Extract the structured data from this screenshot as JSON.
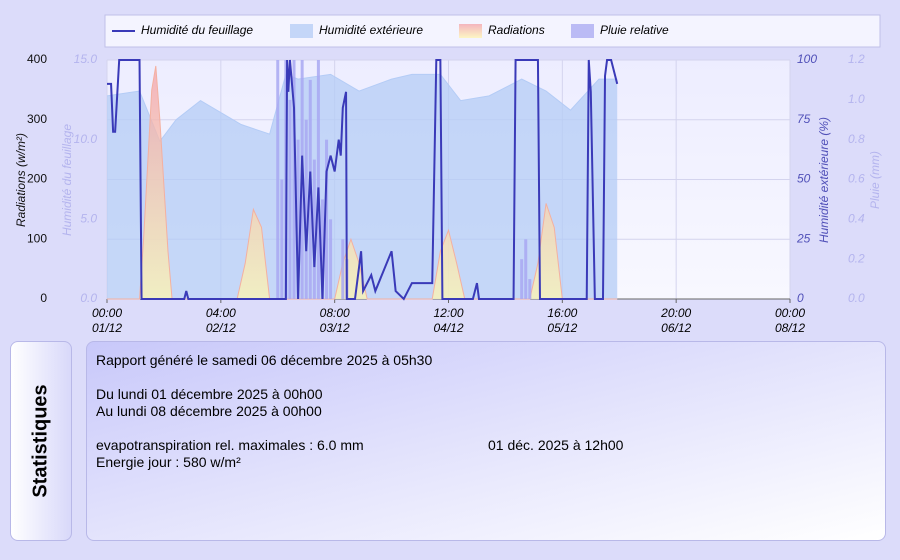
{
  "chart_data": {
    "type": "combo",
    "xlim": [
      0,
      168
    ],
    "xticks": [
      {
        "value": 0,
        "label": "00:00"
      },
      {
        "value": 28,
        "label": "04:00"
      },
      {
        "value": 56,
        "label": "08:00"
      },
      {
        "value": 84,
        "label": "12:00"
      },
      {
        "value": 112,
        "label": "16:00"
      },
      {
        "value": 140,
        "label": "20:00"
      },
      {
        "value": 168,
        "label": "00:00"
      }
    ],
    "xtick_dates": [
      "01/12",
      "02/12",
      "03/12",
      "04/12",
      "05/12",
      "06/12",
      "08/12"
    ],
    "grid": true,
    "axes": [
      {
        "label": "Radiations (w/m²)",
        "lim": [
          0,
          400
        ],
        "ticks": [
          0,
          100,
          200,
          300,
          400
        ],
        "side": "left",
        "color": "#111111"
      },
      {
        "label": "Humidité du feuillage",
        "lim": [
          0,
          15
        ],
        "ticks": [
          {
            "value": 0,
            "label": "0.0"
          },
          {
            "value": 5,
            "label": "5.0"
          },
          {
            "value": 10,
            "label": "10.0"
          },
          {
            "value": 15,
            "label": "15.0"
          }
        ],
        "side": "left",
        "color": "#b4b4ee"
      },
      {
        "label": "Humidité extérieure (%)",
        "lim": [
          0,
          100
        ],
        "ticks": [
          0,
          25,
          50,
          75,
          100
        ],
        "side": "right",
        "color": "#5050b8"
      },
      {
        "label": "Pluie (mm)",
        "lim": [
          0,
          1.2
        ],
        "ticks": [
          {
            "value": 0,
            "label": "0.0"
          },
          0.2,
          0.4,
          0.6,
          0.8,
          {
            "value": 1,
            "label": "1.0"
          },
          1.2
        ],
        "side": "right",
        "color": "#b4b4ee"
      }
    ],
    "series": [
      {
        "name": "Humidité extérieure",
        "type": "area",
        "axis": 2,
        "color": "#b4ccf6",
        "x": [
          0,
          8,
          13,
          17,
          23,
          33,
          40,
          44,
          47,
          55,
          62,
          70,
          75,
          82,
          87,
          94,
          102,
          108,
          114,
          121,
          125.5
        ],
        "values": [
          85,
          87,
          66,
          75,
          83,
          73,
          69,
          94,
          92,
          94,
          87,
          92,
          94,
          94,
          83,
          85,
          92,
          87,
          79,
          92,
          92
        ]
      },
      {
        "name": "Radiations",
        "type": "area",
        "axis": 0,
        "color": "#f4b0a0",
        "x": [
          0,
          8,
          9,
          11,
          12,
          13,
          15,
          16,
          32,
          34,
          36,
          38,
          40,
          56,
          58,
          60,
          62,
          64,
          80,
          82,
          84,
          86,
          88,
          104,
          106,
          108,
          110,
          112,
          125.5
        ],
        "values": [
          0,
          0,
          100,
          350,
          390,
          300,
          80,
          0,
          0,
          60,
          150,
          120,
          0,
          0,
          60,
          100,
          60,
          0,
          0,
          80,
          115,
          60,
          0,
          0,
          60,
          160,
          120,
          0,
          0
        ]
      },
      {
        "name": "Pluie relative",
        "type": "bar",
        "axis": 3,
        "color": "#a8a8f2",
        "x": [
          42,
          43,
          44,
          45,
          46,
          47,
          48,
          49,
          50,
          51,
          52,
          53,
          54,
          55,
          58,
          59,
          102,
          103,
          104
        ],
        "values": [
          1.2,
          0.6,
          1.2,
          1.0,
          1.2,
          0.8,
          1.2,
          0.9,
          1.1,
          0.7,
          1.2,
          0.5,
          0.8,
          0.4,
          0.3,
          0.2,
          0.2,
          0.3,
          0.1
        ]
      },
      {
        "name": "Humidité du feuillage",
        "type": "line",
        "axis": 1,
        "color": "#3a3ab8",
        "x": [
          0,
          1,
          1.5,
          2,
          3,
          8,
          8.5,
          19,
          19.5,
          20,
          44,
          44.3,
          44.6,
          45,
          46,
          47,
          48,
          49,
          50,
          51,
          52,
          53,
          54,
          55,
          56,
          57,
          57.5,
          58,
          58.8,
          59,
          61,
          62.5,
          63,
          65,
          66,
          70,
          71,
          73,
          75,
          80,
          81,
          82,
          82.5,
          90,
          91,
          91.5,
          100,
          100.5,
          106,
          106.5,
          118,
          118.5,
          119,
          120,
          122,
          122.5,
          123,
          124,
          125.5
        ],
        "values": [
          13.5,
          13.5,
          10.5,
          10.5,
          15,
          15,
          0,
          0,
          0.5,
          0,
          0,
          15,
          13,
          15,
          12,
          0,
          9,
          3,
          8,
          2,
          7,
          0,
          8,
          9,
          8,
          10,
          9,
          12,
          13,
          0,
          0,
          3,
          0.5,
          1.5,
          0.5,
          3,
          0.5,
          0,
          1,
          1,
          15,
          15,
          0,
          0,
          1,
          0,
          0,
          15,
          15,
          0,
          0,
          15,
          13,
          0,
          0,
          14,
          15,
          15,
          13.5
        ]
      }
    ],
    "legend_order": [
      3,
      0,
      1,
      2
    ]
  },
  "statistics": {
    "tab": "Statistiques",
    "generated": "Rapport généré le samedi 06 décembre 2025 à 05h30",
    "from": "Du lundi 01 décembre 2025 à 00h00",
    "to": "Au lundi 08 décembre 2025 à 00h00",
    "rows": [
      [
        "evapotranspiration rel. maximales : 6.0 mm",
        "01 déc. 2025 à 12h00"
      ],
      [
        "Energie jour : 580 w/m²"
      ]
    ]
  }
}
